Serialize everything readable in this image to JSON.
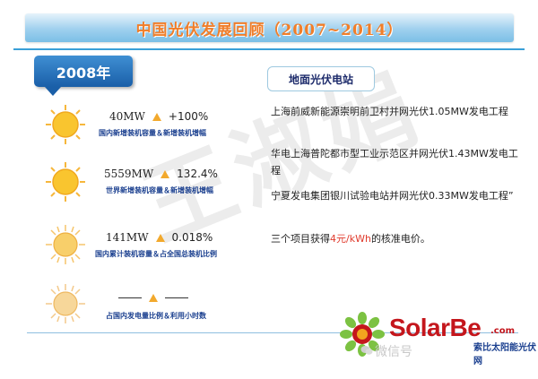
{
  "title": "中国光伏发展回顾（2007~2014）",
  "year_badge": "2008年",
  "stats": [
    {
      "value": "40MW",
      "change": "+100%",
      "label": "国内新增装机容量＆新增装机增幅"
    },
    {
      "value": "5559MW",
      "change": "132.4%",
      "label": "世界新增装机容量＆新增装机增幅"
    },
    {
      "value": "141MW",
      "change": "0.018%",
      "label": "国内累计装机容量＆占全国总装机比例"
    },
    {
      "value": "",
      "change": "",
      "label": "占国内发电量比例＆利用小时数"
    }
  ],
  "station": {
    "heading": "地面光伏电站",
    "items": [
      "上海前威新能源崇明前卫村并网光伏1.05MW发电工程",
      "华电上海普陀都市型工业示范区并网光伏1.43MW发电工程",
      "宁夏发电集团银川试验电站并网光伏0.33MW发电工程”"
    ],
    "price_prefix": "三个项目获得",
    "price_value": "4元/kWh",
    "price_suffix": "的核准电价。"
  },
  "watermark": "王淑娟",
  "logo": {
    "brand": "SolarBe",
    "domain": ".com",
    "tagline": "索比太阳能光伏网"
  },
  "wechat_label": "微信号",
  "colors": {
    "accent": "#3aa0d8",
    "badge": "#1a5fa8",
    "highlight": "#e03a2c",
    "title": "#f07e2a"
  }
}
